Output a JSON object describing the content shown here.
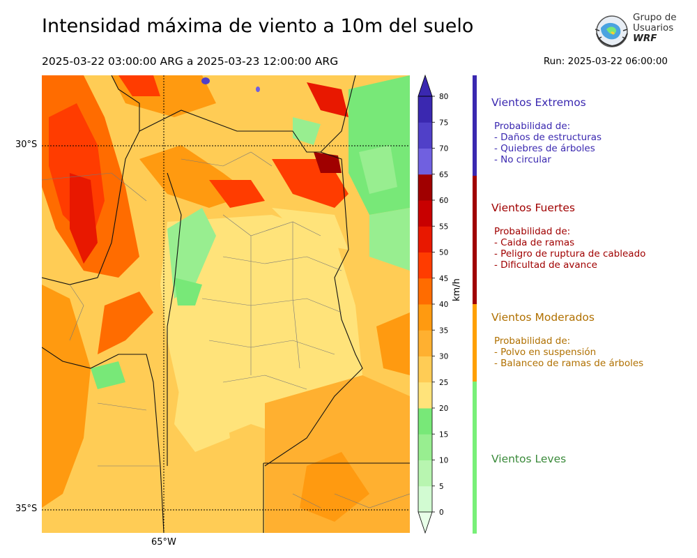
{
  "header": {
    "title": "Intensidad máxima de viento a 10m del suelo",
    "period": "2025-03-22 03:00:00 ARG  a  2025-03-23 12:00:00 ARG",
    "run": "Run: 2025-03-22 06:00:00"
  },
  "logo": {
    "line1": "Grupo de",
    "line2": "Usuarios",
    "line3": "WRF"
  },
  "map": {
    "lat_labels": [
      "30°S",
      "35°S"
    ],
    "lon_labels": [
      "65°W"
    ]
  },
  "colorbar": {
    "unit": "km/h",
    "ticks": [
      "0",
      "5",
      "10",
      "15",
      "20",
      "25",
      "30",
      "35",
      "40",
      "45",
      "50",
      "55",
      "60",
      "65",
      "70",
      "75",
      "80"
    ],
    "colors": [
      "#e8ffe8",
      "#d2fbd2",
      "#b8f5b0",
      "#98ee90",
      "#78e878",
      "#ffe37a",
      "#ffcc55",
      "#ffb030",
      "#ff9a10",
      "#ff6c00",
      "#ff3c00",
      "#e81800",
      "#c80000",
      "#a00000",
      "#7060e0",
      "#5040c8",
      "#3a28b0"
    ]
  },
  "categories": [
    {
      "title": "Vientos Extremos",
      "color": "#3a28b0",
      "lines": [
        "Probabilidad de:",
        "- Daños de estructuras",
        "- Quiebres de árboles",
        "- No circular"
      ]
    },
    {
      "title": "Vientos Fuertes",
      "color": "#a00000",
      "lines": [
        "Probabilidad de:",
        "- Caida de ramas",
        "- Peligro de ruptura de cableado",
        "- Dificultad de avance"
      ]
    },
    {
      "title": "Vientos Moderados",
      "color": "#b07000",
      "lines": [
        "Probabilidad de:",
        "- Polvo en suspensión",
        "- Balanceo de ramas de árboles"
      ]
    },
    {
      "title": "Vientos Leves",
      "color": "#3a8a3a",
      "lines": []
    }
  ],
  "category_bar_colors": [
    "#3a28b0",
    "#a00000",
    "#ffa000",
    "#78f078"
  ]
}
